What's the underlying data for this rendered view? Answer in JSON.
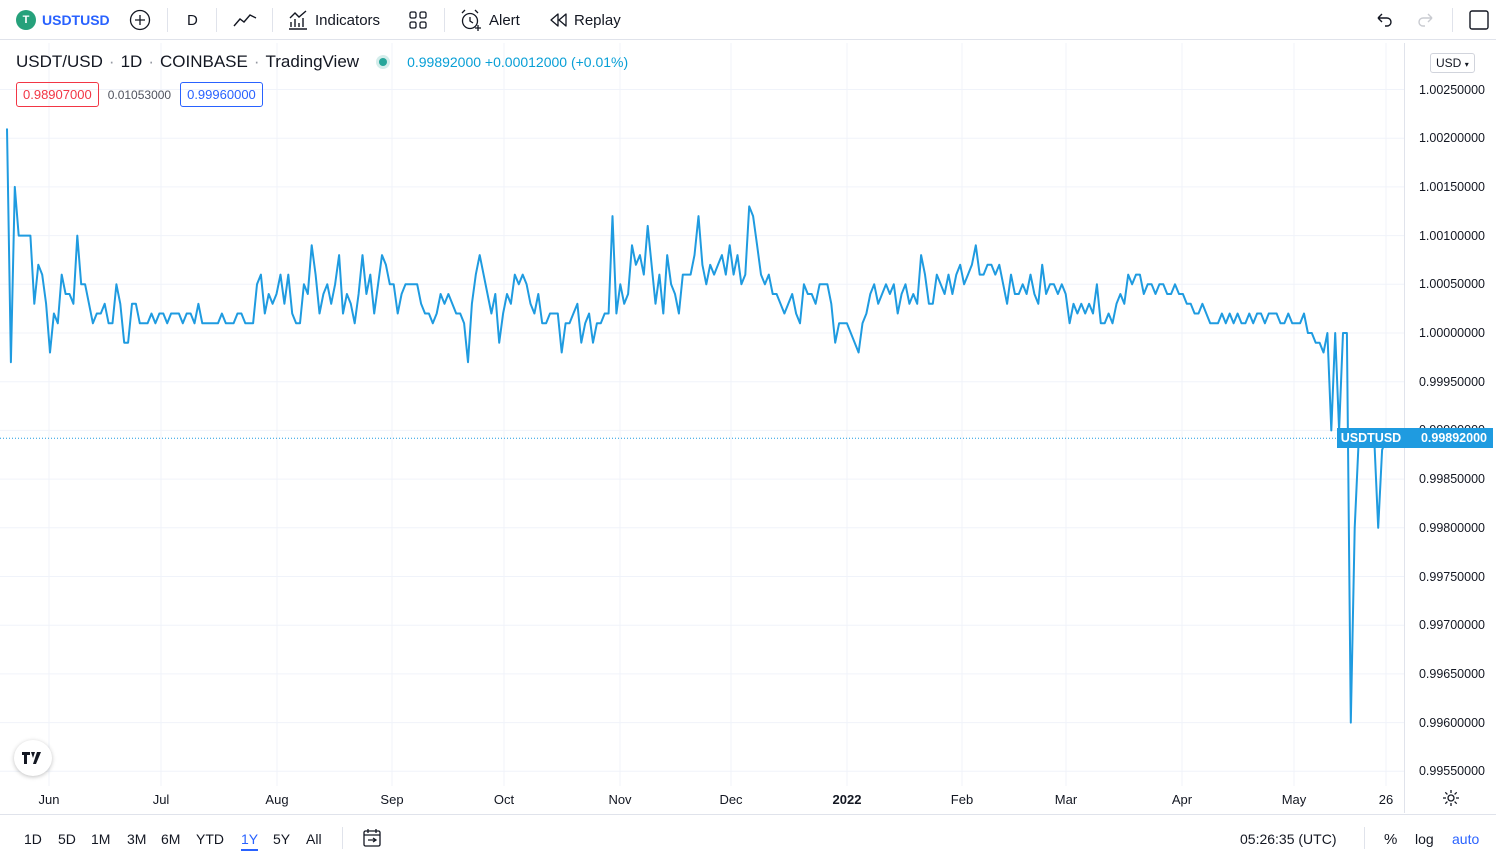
{
  "toolbar": {
    "symbol_logo": "T",
    "symbol": "USDTUSD",
    "interval": "D",
    "indicators_label": "Indicators",
    "alert_label": "Alert",
    "replay_label": "Replay"
  },
  "legend": {
    "pair": "USDT/USD",
    "interval": "1D",
    "exchange": "COINBASE",
    "source": "TradingView",
    "price_change": "0.99892000 +0.00012000 (+0.01%)",
    "bid": "0.98907000",
    "spread": "0.01053000",
    "ask": "0.99960000"
  },
  "currency": "USD",
  "last_price_tag": {
    "name": "USDTUSD",
    "value": "0.99892000"
  },
  "price_labels": [
    "1.00250000",
    "1.00200000",
    "1.00150000",
    "1.00100000",
    "1.00050000",
    "1.00000000",
    "0.99950000",
    "0.99900000",
    "0.99850000",
    "0.99800000",
    "0.99750000",
    "0.99700000",
    "0.99650000",
    "0.99600000",
    "0.99550000"
  ],
  "time_labels": [
    "Jun",
    "Jul",
    "Aug",
    "Sep",
    "Oct",
    "Nov",
    "Dec",
    "2022",
    "Feb",
    "Mar",
    "Apr",
    "May",
    "26"
  ],
  "ranges": [
    "1D",
    "5D",
    "1M",
    "3M",
    "6M",
    "YTD",
    "1Y",
    "5Y",
    "All"
  ],
  "active_range": "1Y",
  "bottom_right": {
    "clock": "05:26:35 (UTC)",
    "percent": "%",
    "log": "log",
    "auto": "auto"
  },
  "colors": {
    "line": "#1f9be0",
    "accent": "#2962ff",
    "bid": "#f23645",
    "logo": "#26a17b"
  },
  "chart_data": {
    "type": "line",
    "x_start": "2021-05-26",
    "x_end": "2022-05-26",
    "ylim": [
      0.9955,
      1.0028
    ],
    "series": [
      {
        "values": [
          1.0021,
          0.9997,
          1.0015,
          1.001,
          1.001,
          1.001,
          1.001,
          1.0003,
          1.0007,
          1.0006,
          1.0003,
          0.9998,
          1.0002,
          1.0001,
          1.0006,
          1.0004,
          1.0004,
          1.0003,
          1.001,
          1.0005,
          1.0005,
          1.0003,
          1.0001,
          1.0002,
          1.0002,
          1.0003,
          1.0001,
          1.0001,
          1.0005,
          1.0003,
          0.9999,
          0.9999,
          1.0003,
          1.0003,
          1.0001,
          1.0001,
          1.0001,
          1.0002,
          1.0001,
          1.0002,
          1.0002,
          1.0001,
          1.0002,
          1.0002,
          1.0002,
          1.0001,
          1.0002,
          1.0002,
          1.0001,
          1.0003,
          1.0001,
          1.0001,
          1.0001,
          1.0001,
          1.0001,
          1.0002,
          1.0001,
          1.0001,
          1.0001,
          1.0002,
          1.0002,
          1.0001,
          1.0001,
          1.0001,
          1.0005,
          1.0006,
          1.0002,
          1.0004,
          1.0003,
          1.0004,
          1.0006,
          1.0003,
          1.0006,
          1.0002,
          1.0001,
          1.0001,
          1.0005,
          1.0004,
          1.0009,
          1.0006,
          1.0002,
          1.0004,
          1.0005,
          1.0003,
          1.0005,
          1.0008,
          1.0002,
          1.0004,
          1.0003,
          1.0001,
          1.0004,
          1.0008,
          1.0004,
          1.0006,
          1.0002,
          1.0005,
          1.0008,
          1.0007,
          1.0005,
          1.0005,
          1.0002,
          1.0004,
          1.0005,
          1.0005,
          1.0005,
          1.0005,
          1.0003,
          1.0002,
          1.0002,
          1.0001,
          1.0002,
          1.0004,
          1.0003,
          1.0004,
          1.0003,
          1.0002,
          1.0002,
          1.0001,
          0.9997,
          1.0003,
          1.0006,
          1.0008,
          1.0006,
          1.0004,
          1.0002,
          1.0004,
          0.9999,
          1.0002,
          1.0004,
          1.0003,
          1.0006,
          1.0005,
          1.0006,
          1.0005,
          1.0003,
          1.0002,
          1.0004,
          1.0001,
          1.0001,
          1.0002,
          1.0002,
          1.0002,
          0.9998,
          1.0001,
          1.0001,
          1.0002,
          1.0003,
          0.9999,
          1.0001,
          1.0002,
          0.9999,
          1.0001,
          1.0001,
          1.0002,
          1.0002,
          1.0012,
          1.0002,
          1.0005,
          1.0003,
          1.0004,
          1.0009,
          1.0007,
          1.0008,
          1.0006,
          1.0011,
          1.0007,
          1.0003,
          1.0006,
          1.0002,
          1.0008,
          1.0005,
          1.0004,
          1.0002,
          1.0006,
          1.0006,
          1.0006,
          1.0008,
          1.0012,
          1.0007,
          1.0005,
          1.0007,
          1.0006,
          1.0007,
          1.0008,
          1.0006,
          1.0009,
          1.0006,
          1.0008,
          1.0005,
          1.0006,
          1.0013,
          1.0012,
          1.0009,
          1.0006,
          1.0005,
          1.0006,
          1.0004,
          1.0004,
          1.0003,
          1.0002,
          1.0003,
          1.0004,
          1.0002,
          1.0001,
          1.0005,
          1.0004,
          1.0004,
          1.0003,
          1.0005,
          1.0005,
          1.0005,
          1.0003,
          0.9999,
          1.0001,
          1.0001,
          1.0001,
          1.0,
          0.9999,
          0.9998,
          1.0001,
          1.0002,
          1.0004,
          1.0005,
          1.0003,
          1.0004,
          1.0005,
          1.0004,
          1.0005,
          1.0002,
          1.0004,
          1.0005,
          1.0003,
          1.0004,
          1.0003,
          1.0008,
          1.0006,
          1.0003,
          1.0003,
          1.0006,
          1.0005,
          1.0004,
          1.0006,
          1.0004,
          1.0006,
          1.0007,
          1.0005,
          1.0006,
          1.0007,
          1.0009,
          1.0006,
          1.0006,
          1.0007,
          1.0007,
          1.0006,
          1.0007,
          1.0005,
          1.0003,
          1.0006,
          1.0004,
          1.0004,
          1.0005,
          1.0004,
          1.0006,
          1.0004,
          1.0003,
          1.0007,
          1.0004,
          1.0005,
          1.0005,
          1.0004,
          1.0005,
          1.0004,
          1.0001,
          1.0003,
          1.0002,
          1.0003,
          1.0002,
          1.0003,
          1.0002,
          1.0005,
          1.0001,
          1.0001,
          1.0002,
          1.0001,
          1.0003,
          1.0004,
          1.0003,
          1.0006,
          1.0005,
          1.0006,
          1.0006,
          1.0004,
          1.0005,
          1.0005,
          1.0004,
          1.0005,
          1.0005,
          1.0004,
          1.0004,
          1.0005,
          1.0004,
          1.0004,
          1.0003,
          1.0003,
          1.0002,
          1.0002,
          1.0003,
          1.0002,
          1.0001,
          1.0001,
          1.0001,
          1.0002,
          1.0001,
          1.0002,
          1.0001,
          1.0002,
          1.0001,
          1.0001,
          1.0002,
          1.0001,
          1.0002,
          1.0002,
          1.0001,
          1.0002,
          1.0002,
          1.0002,
          1.0001,
          1.0001,
          1.0002,
          1.0001,
          1.0001,
          1.0001,
          1.0002,
          1.0,
          1.0,
          0.9999,
          0.9999,
          0.9998,
          1.0,
          0.999,
          1.0,
          0.999,
          1.0,
          1.0,
          0.996,
          0.998,
          0.9989,
          0.9989,
          0.9989,
          0.9989,
          0.9989,
          0.998,
          0.9988,
          0.9989
        ]
      }
    ]
  }
}
